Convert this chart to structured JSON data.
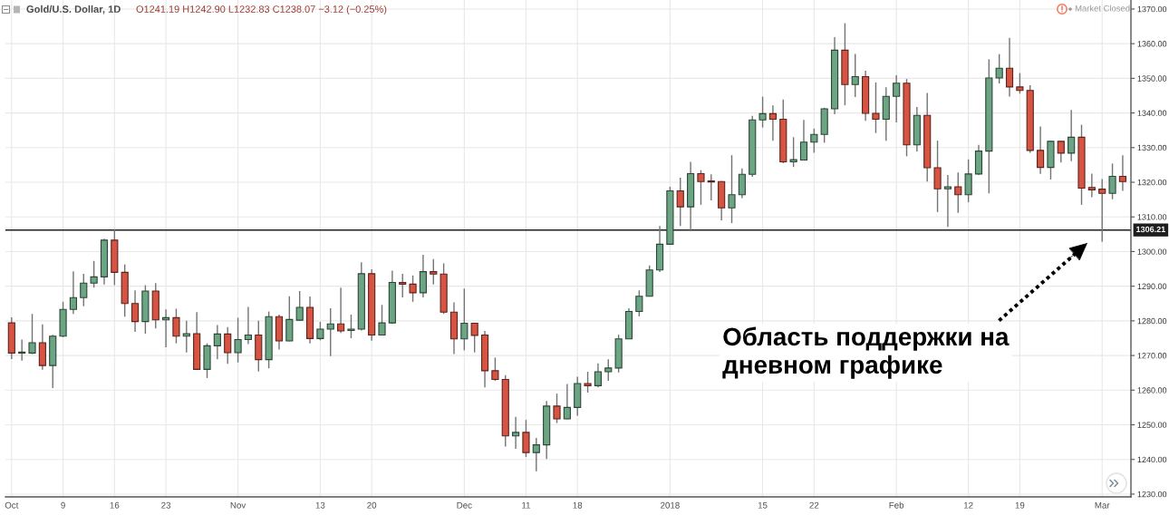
{
  "chart_data": {
    "type": "candlestick",
    "title": "Gold/U.S. Dollar, 1D",
    "subtitle": "O1241.19 H1242.90 L1232.83 C1238.07 −3.12 (−0.25%)",
    "categories": [
      "Oct",
      null,
      null,
      null,
      null,
      "9",
      null,
      null,
      null,
      null,
      "16",
      null,
      null,
      null,
      null,
      "23",
      null,
      null,
      null,
      null,
      null,
      null,
      "Nov",
      null,
      null,
      null,
      null,
      null,
      null,
      null,
      "13",
      null,
      null,
      null,
      null,
      "20",
      null,
      null,
      null,
      null,
      null,
      null,
      null,
      null,
      "Dec",
      null,
      null,
      null,
      null,
      null,
      "11",
      null,
      null,
      null,
      null,
      "18",
      null,
      null,
      null,
      null,
      null,
      null,
      null,
      null,
      "2018",
      null,
      null,
      null,
      null,
      null,
      null,
      null,
      null,
      "15",
      null,
      null,
      null,
      null,
      "22",
      null,
      null,
      null,
      null,
      null,
      null,
      null,
      "Feb",
      null,
      null,
      null,
      null,
      null,
      null,
      "12",
      null,
      null,
      null,
      null,
      "19",
      null,
      null,
      null,
      null,
      null,
      null,
      null,
      "Mar",
      null,
      null
    ],
    "ohlc": [
      [
        1279.4,
        1281.0,
        1269.0,
        1270.7
      ],
      [
        1270.7,
        1274.6,
        1268.5,
        1271.0
      ],
      [
        1270.7,
        1282.0,
        1270.4,
        1273.7
      ],
      [
        1273.7,
        1279.0,
        1265.9,
        1267.1
      ],
      [
        1267.1,
        1276.0,
        1260.6,
        1275.6
      ],
      [
        1275.6,
        1285.5,
        1275.3,
        1283.3
      ],
      [
        1283.3,
        1294.3,
        1282.0,
        1286.7
      ],
      [
        1286.7,
        1293.6,
        1284.2,
        1290.9
      ],
      [
        1290.9,
        1297.3,
        1289.6,
        1292.7
      ],
      [
        1292.7,
        1303.7,
        1290.5,
        1303.3
      ],
      [
        1303.3,
        1306.5,
        1290.3,
        1294.0
      ],
      [
        1294.0,
        1296.3,
        1281.2,
        1285.0
      ],
      [
        1285.0,
        1288.8,
        1276.8,
        1279.8
      ],
      [
        1279.8,
        1290.3,
        1276.3,
        1288.6
      ],
      [
        1288.6,
        1290.9,
        1277.8,
        1280.3
      ],
      [
        1280.3,
        1283.3,
        1272.4,
        1280.9
      ],
      [
        1280.9,
        1283.5,
        1273.5,
        1275.6
      ],
      [
        1275.6,
        1280.0,
        1270.9,
        1276.3
      ],
      [
        1276.3,
        1282.5,
        1265.9,
        1266.0
      ],
      [
        1266.0,
        1273.5,
        1263.5,
        1272.8
      ],
      [
        1272.8,
        1278.8,
        1268.9,
        1276.2
      ],
      [
        1276.2,
        1278.2,
        1267.6,
        1270.8
      ],
      [
        1270.8,
        1280.9,
        1268.0,
        1274.6
      ],
      [
        1274.6,
        1284.0,
        1273.3,
        1275.9
      ],
      [
        1275.9,
        1280.0,
        1265.4,
        1268.8
      ],
      [
        1268.8,
        1282.7,
        1266.3,
        1281.2
      ],
      [
        1281.2,
        1281.8,
        1271.7,
        1274.2
      ],
      [
        1274.2,
        1287.1,
        1274.1,
        1280.4
      ],
      [
        1280.2,
        1288.6,
        1280.0,
        1283.9
      ],
      [
        1283.9,
        1287.0,
        1273.5,
        1274.9
      ],
      [
        1274.9,
        1279.7,
        1274.4,
        1277.6
      ],
      [
        1277.6,
        1283.6,
        1269.8,
        1279.1
      ],
      [
        1279.1,
        1289.6,
        1276.5,
        1277.1
      ],
      [
        1277.2,
        1281.8,
        1275.0,
        1277.6
      ],
      [
        1277.6,
        1296.9,
        1277.2,
        1293.6
      ],
      [
        1293.6,
        1294.9,
        1274.3,
        1275.9
      ],
      [
        1275.9,
        1284.6,
        1275.8,
        1279.4
      ],
      [
        1279.4,
        1294.5,
        1279.1,
        1291.1
      ],
      [
        1291.1,
        1293.6,
        1286.8,
        1290.6
      ],
      [
        1290.6,
        1293.1,
        1285.5,
        1288.1
      ],
      [
        1288.1,
        1299.1,
        1286.8,
        1294.2
      ],
      [
        1294.2,
        1297.8,
        1290.5,
        1293.5
      ],
      [
        1293.5,
        1296.6,
        1282.0,
        1282.5
      ],
      [
        1282.5,
        1285.3,
        1270.4,
        1274.8
      ],
      [
        1274.8,
        1289.3,
        1271.5,
        1279.3
      ],
      [
        1279.3,
        1279.4,
        1270.9,
        1275.8
      ],
      [
        1275.9,
        1277.1,
        1260.8,
        1265.6
      ],
      [
        1265.6,
        1269.4,
        1262.7,
        1263.1
      ],
      [
        1263.1,
        1264.3,
        1243.7,
        1246.8
      ],
      [
        1246.8,
        1252.3,
        1243.1,
        1247.8
      ],
      [
        1247.8,
        1251.4,
        1240.7,
        1242.0
      ],
      [
        1242.0,
        1246.2,
        1236.6,
        1244.2
      ],
      [
        1244.2,
        1256.9,
        1240.1,
        1255.4
      ],
      [
        1255.4,
        1259.0,
        1250.5,
        1251.7
      ],
      [
        1251.7,
        1261.8,
        1251.6,
        1255.0
      ],
      [
        1255.0,
        1263.9,
        1252.6,
        1261.9
      ],
      [
        1261.9,
        1265.3,
        1259.3,
        1261.3
      ],
      [
        1261.3,
        1267.7,
        1260.8,
        1265.3
      ],
      [
        1265.3,
        1268.9,
        1262.7,
        1266.4
      ],
      [
        1266.4,
        1276.0,
        1265.1,
        1274.8
      ],
      [
        1274.8,
        1283.6,
        1274.7,
        1282.7
      ],
      [
        1282.7,
        1288.8,
        1281.3,
        1287.1
      ],
      [
        1287.1,
        1296.0,
        1287.0,
        1294.7
      ],
      [
        1294.7,
        1307.4,
        1294.1,
        1302.1
      ],
      [
        1302.1,
        1318.7,
        1302.0,
        1317.5
      ],
      [
        1317.5,
        1321.3,
        1307.4,
        1312.9
      ],
      [
        1312.9,
        1325.9,
        1305.9,
        1322.5
      ],
      [
        1322.5,
        1323.5,
        1313.5,
        1320.2
      ],
      [
        1320.4,
        1322.3,
        1314.8,
        1320.1
      ],
      [
        1320.2,
        1320.3,
        1309.0,
        1312.6
      ],
      [
        1312.6,
        1327.8,
        1308.2,
        1316.4
      ],
      [
        1316.4,
        1324.0,
        1315.4,
        1322.3
      ],
      [
        1322.3,
        1339.2,
        1321.6,
        1338.0
      ],
      [
        1338.0,
        1344.7,
        1335.8,
        1339.8
      ],
      [
        1339.8,
        1342.2,
        1332.0,
        1338.2
      ],
      [
        1338.2,
        1343.9,
        1325.5,
        1325.9
      ],
      [
        1325.9,
        1333.0,
        1324.4,
        1326.5
      ],
      [
        1326.4,
        1338.0,
        1326.3,
        1331.6
      ],
      [
        1331.6,
        1335.5,
        1328.5,
        1333.8
      ],
      [
        1333.8,
        1341.5,
        1331.4,
        1341.2
      ],
      [
        1341.2,
        1361.9,
        1339.6,
        1358.1
      ],
      [
        1358.1,
        1365.9,
        1342.2,
        1348.2
      ],
      [
        1348.2,
        1357.0,
        1344.6,
        1350.5
      ],
      [
        1350.5,
        1352.2,
        1337.7,
        1339.9
      ],
      [
        1339.9,
        1348.8,
        1334.2,
        1338.2
      ],
      [
        1338.2,
        1347.4,
        1332.0,
        1344.8
      ],
      [
        1344.8,
        1350.9,
        1337.3,
        1348.6
      ],
      [
        1348.6,
        1349.8,
        1327.5,
        1330.8
      ],
      [
        1330.8,
        1341.7,
        1328.9,
        1339.3
      ],
      [
        1339.3,
        1345.8,
        1320.2,
        1324.2
      ],
      [
        1324.2,
        1332.0,
        1311.4,
        1318.1
      ],
      [
        1318.1,
        1322.1,
        1307.1,
        1318.7
      ],
      [
        1318.7,
        1322.8,
        1311.2,
        1316.4
      ],
      [
        1316.4,
        1326.6,
        1314.2,
        1322.4
      ],
      [
        1322.4,
        1330.8,
        1322.1,
        1329.0
      ],
      [
        1329.0,
        1355.5,
        1316.8,
        1350.1
      ],
      [
        1350.1,
        1357.0,
        1348.5,
        1352.9
      ],
      [
        1352.9,
        1361.7,
        1344.7,
        1347.5
      ],
      [
        1347.5,
        1351.5,
        1345.6,
        1346.5
      ],
      [
        1346.5,
        1348.0,
        1328.5,
        1329.2
      ],
      [
        1329.2,
        1336.1,
        1322.4,
        1324.3
      ],
      [
        1324.3,
        1331.9,
        1320.8,
        1331.8
      ],
      [
        1331.8,
        1331.9,
        1325.7,
        1328.4
      ],
      [
        1328.4,
        1340.9,
        1326.1,
        1333.0
      ],
      [
        1333.0,
        1336.6,
        1313.5,
        1318.3
      ],
      [
        1318.5,
        1322.5,
        1315.7,
        1317.8
      ],
      [
        1318.0,
        1320.9,
        1302.8,
        1316.8
      ],
      [
        1316.8,
        1325.4,
        1315.1,
        1321.7
      ],
      [
        1321.7,
        1327.8,
        1317.5,
        1320.2
      ]
    ],
    "colors": [
      "#d75442",
      "#6ba583",
      "#6ba583",
      "#d75442",
      "#6ba583",
      "#6ba583",
      "#6ba583",
      "#6ba583",
      "#6ba583",
      "#6ba583",
      "#d75442",
      "#d75442",
      "#d75442",
      "#6ba583",
      "#d75442",
      "#6ba583",
      "#d75442",
      "#6ba583",
      "#d75442",
      "#6ba583",
      "#6ba583",
      "#d75442",
      "#6ba583",
      "#6ba583",
      "#d75442",
      "#6ba583",
      "#d75442",
      "#6ba583",
      "#6ba583",
      "#d75442",
      "#6ba583",
      "#6ba583",
      "#d75442",
      "#6ba583",
      "#6ba583",
      "#d75442",
      "#6ba583",
      "#6ba583",
      "#d75442",
      "#d75442",
      "#6ba583",
      "#d75442",
      "#d75442",
      "#d75442",
      "#6ba583",
      "#d75442",
      "#d75442",
      "#d75442",
      "#d75442",
      "#6ba583",
      "#d75442",
      "#6ba583",
      "#6ba583",
      "#d75442",
      "#6ba583",
      "#6ba583",
      "#d75442",
      "#6ba583",
      "#6ba583",
      "#6ba583",
      "#6ba583",
      "#6ba583",
      "#6ba583",
      "#6ba583",
      "#6ba583",
      "#d75442",
      "#6ba583",
      "#d75442",
      "#d75442",
      "#d75442",
      "#6ba583",
      "#6ba583",
      "#6ba583",
      "#6ba583",
      "#d75442",
      "#d75442",
      "#6ba583",
      "#6ba583",
      "#6ba583",
      "#6ba583",
      "#6ba583",
      "#d75442",
      "#6ba583",
      "#d75442",
      "#d75442",
      "#6ba583",
      "#6ba583",
      "#d75442",
      "#6ba583",
      "#d75442",
      "#d75442",
      "#6ba583",
      "#d75442",
      "#6ba583",
      "#6ba583",
      "#6ba583",
      "#6ba583",
      "#d75442",
      "#d75442",
      "#d75442",
      "#d75442",
      "#6ba583",
      "#d75442",
      "#6ba583",
      "#d75442",
      "#d75442",
      "#d75442",
      "#6ba583",
      "#d75442"
    ],
    "ylim": [
      1229.2,
      1372.6
    ],
    "yticks": [
      {
        "value": 1230,
        "label": "1230.00"
      },
      {
        "value": 1240,
        "label": "1240.00"
      },
      {
        "value": 1250,
        "label": "1250.00"
      },
      {
        "value": 1260,
        "label": "1260.00"
      },
      {
        "value": 1270,
        "label": "1270.00"
      },
      {
        "value": 1280,
        "label": "1280.00"
      },
      {
        "value": 1290,
        "label": "1290.00"
      },
      {
        "value": 1300,
        "label": "1300.00"
      },
      {
        "value": 1310,
        "label": "1310.00"
      },
      {
        "value": 1320,
        "label": "1320.00"
      },
      {
        "value": 1330,
        "label": "1330.00"
      },
      {
        "value": 1340,
        "label": "1340.00"
      },
      {
        "value": 1350,
        "label": "1350.00"
      },
      {
        "value": 1360,
        "label": "1360.00"
      },
      {
        "value": 1370,
        "label": "1370.00"
      }
    ],
    "grid": true,
    "ref_lines": [
      {
        "axis": "y",
        "value": 1306.21,
        "label": "1306.21",
        "color": "#1e1e1e"
      }
    ],
    "annotations": [
      "Market Closed",
      "Область поддержки на\nдневном графике"
    ]
  }
}
